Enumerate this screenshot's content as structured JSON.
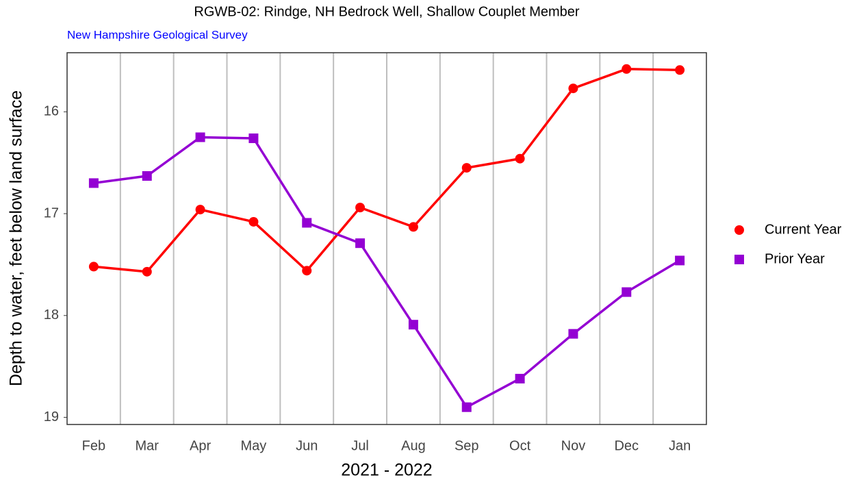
{
  "chart_data": {
    "type": "line",
    "title": "RGWB-02: Rindge, NH Bedrock Well, Shallow Couplet Member",
    "subtitle": "New Hampshire Geological Survey",
    "x_label": "2021 - 2022",
    "y_label": "Depth to water, feet below land surface",
    "categories": [
      "Feb",
      "Mar",
      "Apr",
      "May",
      "Jun",
      "Jul",
      "Aug",
      "Sep",
      "Oct",
      "Nov",
      "Dec",
      "Jan"
    ],
    "series": [
      {
        "name": "Current Year",
        "color": "#ff0000",
        "marker": "circle",
        "values": [
          17.52,
          17.57,
          16.96,
          17.08,
          17.56,
          16.94,
          17.13,
          16.55,
          16.46,
          15.77,
          15.58,
          15.59
        ]
      },
      {
        "name": "Prior Year",
        "color": "#9400d3",
        "marker": "square",
        "values": [
          16.7,
          16.63,
          16.25,
          16.26,
          17.09,
          17.29,
          18.09,
          18.9,
          18.62,
          18.18,
          17.77,
          17.46
        ]
      }
    ],
    "ylim": [
      15.42,
      19.07
    ],
    "y_reversed": true,
    "yticks": [
      16,
      17,
      18,
      19
    ],
    "vertical_grid": true,
    "legend": "right"
  }
}
